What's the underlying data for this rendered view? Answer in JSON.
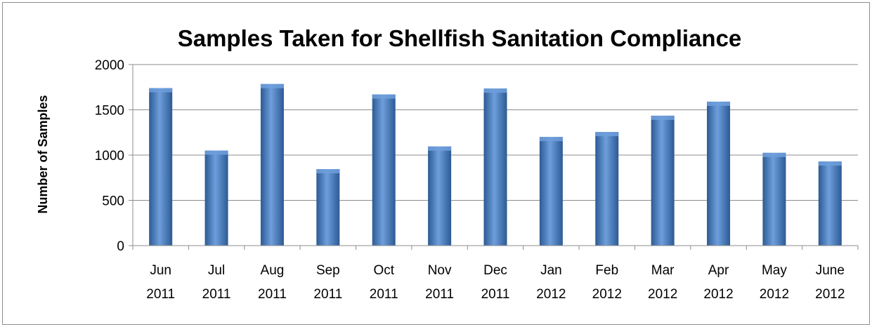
{
  "chart_data": {
    "type": "bar",
    "title": "Samples Taken for Shellfish Sanitation Compliance",
    "xlabel": "",
    "ylabel": "Number of Samples",
    "ylim": [
      0,
      2000
    ],
    "yticks": [
      0,
      500,
      1000,
      1500,
      2000
    ],
    "grid": true,
    "legend": "none",
    "categories": [
      [
        "Jun",
        "2011"
      ],
      [
        "Jul",
        "2011"
      ],
      [
        "Aug",
        "2011"
      ],
      [
        "Sep",
        "2011"
      ],
      [
        "Oct",
        "2011"
      ],
      [
        "Nov",
        "2011"
      ],
      [
        "Dec",
        "2011"
      ],
      [
        "Jan",
        "2012"
      ],
      [
        "Feb",
        "2012"
      ],
      [
        "Mar",
        "2012"
      ],
      [
        "Apr",
        "2012"
      ],
      [
        "May",
        "2012"
      ],
      [
        "June",
        "2012"
      ]
    ],
    "values": [
      1740,
      1050,
      1785,
      845,
      1670,
      1095,
      1735,
      1200,
      1255,
      1435,
      1590,
      1025,
      930
    ],
    "colors": {
      "bar_light": "#6e9fdc",
      "bar_mid": "#4a7ec4",
      "bar_dark": "#2c5a94",
      "grid": "#8c8c8c",
      "axis": "#8c8c8c"
    }
  }
}
